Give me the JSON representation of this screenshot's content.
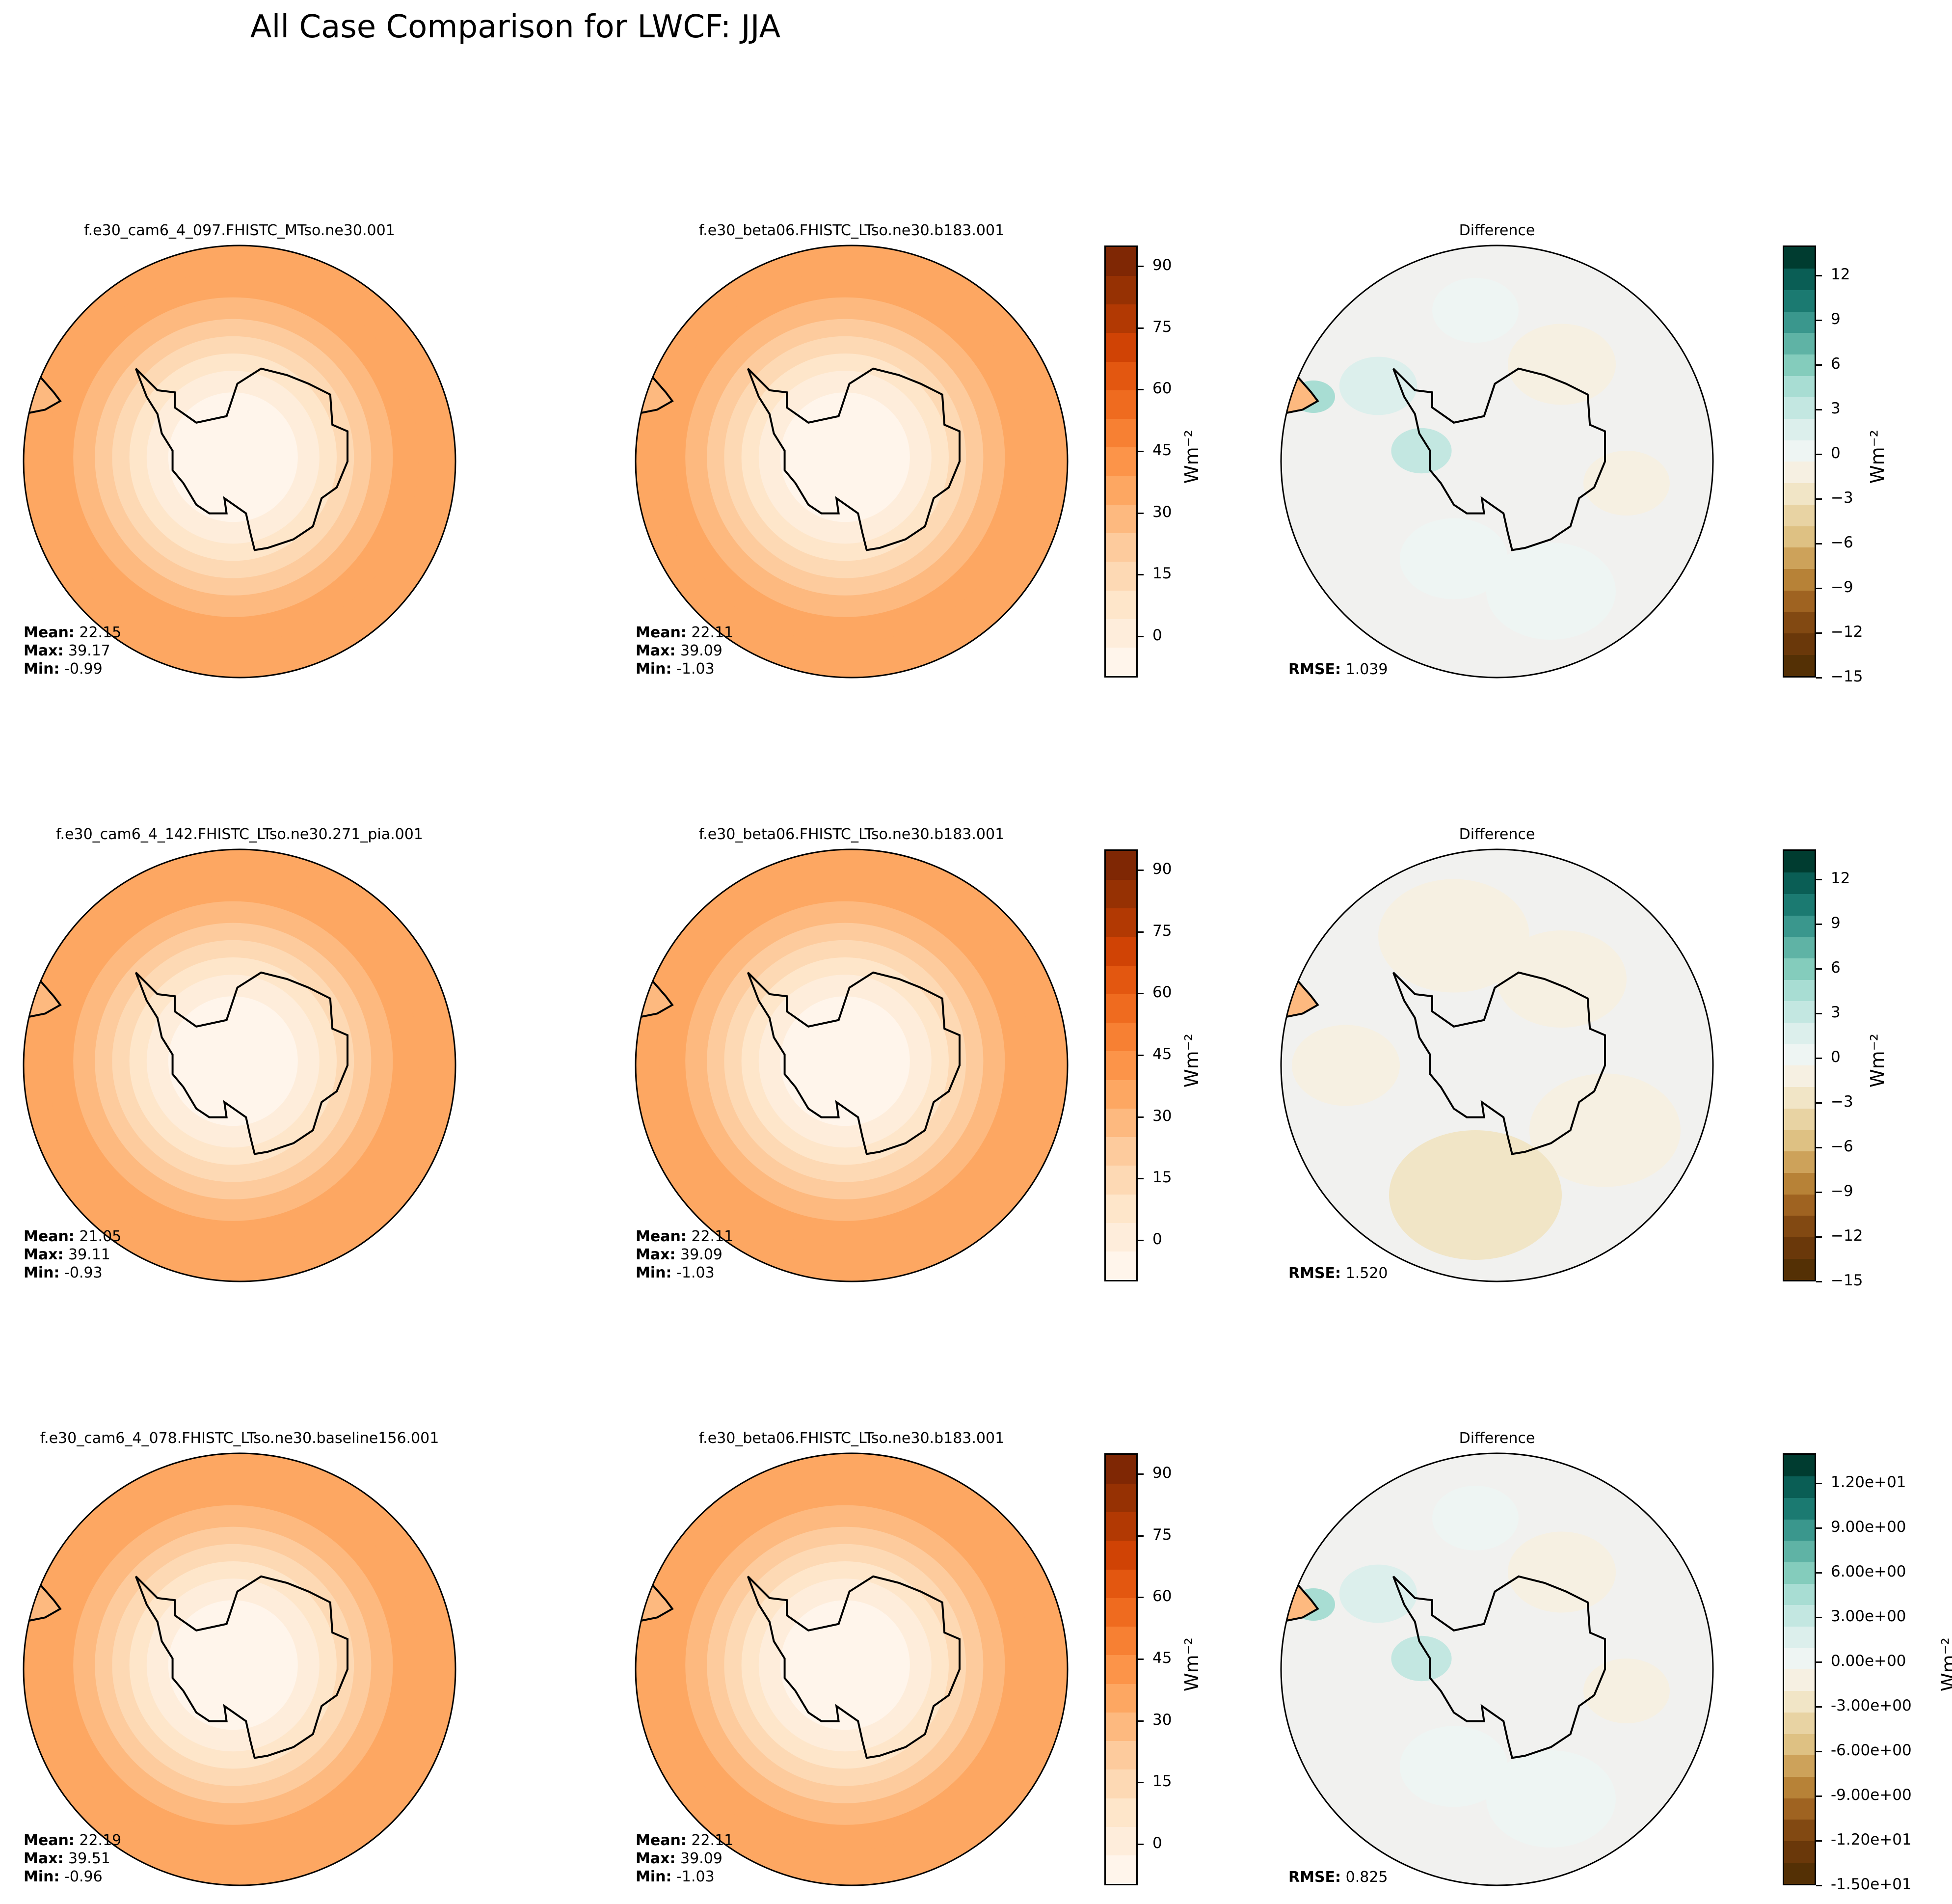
{
  "title": "All Case Comparison for LWCF: JJA",
  "colors": {
    "orange_levels": [
      "#fff5eb",
      "#feeddb",
      "#fee6ca",
      "#fdd9b4",
      "#fdcb9d",
      "#fdb97f",
      "#fda762",
      "#fc9449",
      "#f78033",
      "#ef6b1f",
      "#e35710",
      "#d04305",
      "#b23903",
      "#963103",
      "#7f2704"
    ],
    "diff_pos": [
      "#eef5f3",
      "#dcefec",
      "#c3e7e1",
      "#a8ddd3",
      "#84ccbc",
      "#5fb3a5",
      "#3a978d",
      "#1b7a71",
      "#0a5e55",
      "#003c30"
    ],
    "diff_neg": [
      "#f6f0e2",
      "#f1e5c6",
      "#e8d3a3",
      "#dec183",
      "#cda25a",
      "#b78237",
      "#9f6321",
      "#824912",
      "#6a380a",
      "#543005"
    ]
  },
  "chart_data": [
    {
      "type": "heatmap",
      "title": "f.e30_cam6_4_097.FHISTC_MTso.ne30.001",
      "stats": {
        "mean_label": "Mean:",
        "mean": "22.15",
        "max_label": "Max:",
        "max": "39.17",
        "min_label": "Min:",
        "min": "-0.99"
      },
      "colormap": "Oranges"
    },
    {
      "type": "heatmap",
      "title": "f.e30_beta06.FHISTC_LTso.ne30.b183.001",
      "stats": {
        "mean_label": "Mean:",
        "mean": "22.11",
        "max_label": "Max:",
        "max": "39.09",
        "min_label": "Min:",
        "min": "-1.03"
      },
      "colormap": "Oranges",
      "colorbar": {
        "unit": "Wm⁻²",
        "ticks": [
          "0",
          "15",
          "30",
          "45",
          "60",
          "75",
          "90"
        ],
        "range": [
          -10,
          95
        ]
      }
    },
    {
      "type": "heatmap",
      "title": "Difference",
      "stats": {
        "rmse_label": "RMSE:",
        "rmse": "1.039"
      },
      "colormap": "BrBG",
      "colorbar": {
        "unit": "Wm⁻²",
        "ticks": [
          "−15",
          "−12",
          "−9",
          "−6",
          "−3",
          "0",
          "3",
          "6",
          "9",
          "12"
        ],
        "range": [
          -15,
          14
        ]
      }
    },
    {
      "type": "heatmap",
      "title": "f.e30_cam6_4_142.FHISTC_LTso.ne30.271_pia.001",
      "stats": {
        "mean_label": "Mean:",
        "mean": "21.05",
        "max_label": "Max:",
        "max": "39.11",
        "min_label": "Min:",
        "min": "-0.93"
      },
      "colormap": "Oranges"
    },
    {
      "type": "heatmap",
      "title": "f.e30_beta06.FHISTC_LTso.ne30.b183.001",
      "stats": {
        "mean_label": "Mean:",
        "mean": "22.11",
        "max_label": "Max:",
        "max": "39.09",
        "min_label": "Min:",
        "min": "-1.03"
      },
      "colormap": "Oranges",
      "colorbar": {
        "unit": "Wm⁻²",
        "ticks": [
          "0",
          "15",
          "30",
          "45",
          "60",
          "75",
          "90"
        ],
        "range": [
          -10,
          95
        ]
      }
    },
    {
      "type": "heatmap",
      "title": "Difference",
      "stats": {
        "rmse_label": "RMSE:",
        "rmse": "1.520"
      },
      "colormap": "BrBG",
      "colorbar": {
        "unit": "Wm⁻²",
        "ticks": [
          "−15",
          "−12",
          "−9",
          "−6",
          "−3",
          "0",
          "3",
          "6",
          "9",
          "12"
        ],
        "range": [
          -15,
          14
        ]
      }
    },
    {
      "type": "heatmap",
      "title": "f.e30_cam6_4_078.FHISTC_LTso.ne30.baseline156.001",
      "stats": {
        "mean_label": "Mean:",
        "mean": "22.19",
        "max_label": "Max:",
        "max": "39.51",
        "min_label": "Min:",
        "min": "-0.96"
      },
      "colormap": "Oranges"
    },
    {
      "type": "heatmap",
      "title": "f.e30_beta06.FHISTC_LTso.ne30.b183.001",
      "stats": {
        "mean_label": "Mean:",
        "mean": "22.11",
        "max_label": "Max:",
        "max": "39.09",
        "min_label": "Min:",
        "min": "-1.03"
      },
      "colormap": "Oranges",
      "colorbar": {
        "unit": "Wm⁻²",
        "ticks": [
          "0",
          "15",
          "30",
          "45",
          "60",
          "75",
          "90"
        ],
        "range": [
          -10,
          95
        ]
      }
    },
    {
      "type": "heatmap",
      "title": "Difference",
      "stats": {
        "rmse_label": "RMSE:",
        "rmse": "0.825"
      },
      "colormap": "BrBG",
      "colorbar": {
        "unit": "Wm⁻²",
        "ticks": [
          "-1.50e+01",
          "-1.20e+01",
          "-9.00e+00",
          "-6.00e+00",
          "-3.00e+00",
          "0.00e+00",
          "3.00e+00",
          "6.00e+00",
          "9.00e+00",
          "1.20e+01"
        ],
        "range": [
          -15,
          14
        ]
      }
    }
  ]
}
